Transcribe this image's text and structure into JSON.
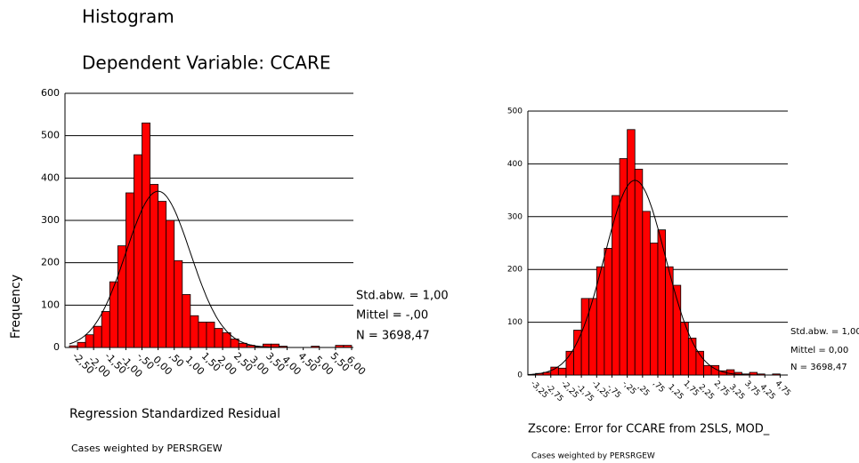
{
  "chart_data": [
    {
      "type": "histogram",
      "title": "Histogram",
      "subtitle": "Dependent Variable: CCARE",
      "ylabel": "Frequency",
      "xlabel": "Regression Standardized Residual",
      "note": "Cases weighted by PERSRGEW",
      "color": "#ff0000",
      "grid": true,
      "normal_curve": true,
      "bins": [
        -2.75,
        -2.5,
        -2.25,
        -2,
        -1.75,
        -1.5,
        -1.25,
        -1,
        -0.75,
        -0.5,
        -0.25,
        0,
        0.25,
        0.5,
        0.75,
        1,
        1.25,
        1.5,
        1.75,
        2,
        2.25,
        2.5,
        2.75,
        3,
        3.25,
        3.5,
        3.75,
        4,
        4.25,
        4.5,
        4.75,
        5,
        5.25,
        5.5,
        5.75,
        6
      ],
      "values": [
        4,
        12,
        30,
        50,
        85,
        155,
        240,
        365,
        455,
        530,
        385,
        345,
        300,
        205,
        125,
        75,
        60,
        60,
        45,
        35,
        20,
        10,
        5,
        2,
        8,
        8,
        3,
        0,
        0,
        0,
        3,
        0,
        0,
        5,
        5
      ],
      "xlim": [
        -2.75,
        6
      ],
      "ylim": [
        0,
        600
      ],
      "yticks": [
        0,
        100,
        200,
        300,
        400,
        500,
        600
      ],
      "xticks": [
        {
          "value": -2.5,
          "label": "-2,50"
        },
        {
          "value": -2,
          "label": "-2,00"
        },
        {
          "value": -1.5,
          "label": "-1,50"
        },
        {
          "value": -1,
          "label": "-1,00"
        },
        {
          "value": -0.5,
          "label": "-,50"
        },
        {
          "value": 0,
          "label": "0,00"
        },
        {
          "value": 0.5,
          "label": ",50"
        },
        {
          "value": 1,
          "label": "1,00"
        },
        {
          "value": 1.5,
          "label": "1,50"
        },
        {
          "value": 2,
          "label": "2,00"
        },
        {
          "value": 2.5,
          "label": "2,50"
        },
        {
          "value": 3,
          "label": "3,00"
        },
        {
          "value": 3.5,
          "label": "3,50"
        },
        {
          "value": 4,
          "label": "4,00"
        },
        {
          "value": 4.5,
          "label": "4,50"
        },
        {
          "value": 5,
          "label": "5,00"
        },
        {
          "value": 5.5,
          "label": "5,50"
        },
        {
          "value": 6,
          "label": "6,00"
        }
      ],
      "stats": {
        "sd": {
          "value": 1,
          "label": "Std.abw. = 1,00"
        },
        "mean": {
          "value": 0,
          "label": "Mittel = -,00"
        },
        "n": {
          "value": 3698.47,
          "label": "N = 3698,47"
        }
      }
    },
    {
      "type": "histogram",
      "xlabel": "Zscore:  Error for CCARE from 2SLS, MOD_",
      "note": "Cases weighted by PERSRGEW",
      "color": "#ff0000",
      "grid": true,
      "normal_curve": true,
      "bins": [
        -3.5,
        -3.25,
        -3,
        -2.75,
        -2.5,
        -2.25,
        -2,
        -1.75,
        -1.5,
        -1.25,
        -1,
        -0.75,
        -0.5,
        -0.25,
        0,
        0.25,
        0.5,
        0.75,
        1,
        1.25,
        1.5,
        1.75,
        2,
        2.25,
        2.5,
        2.75,
        3,
        3.25,
        3.5,
        3.75,
        4,
        4.25,
        4.5,
        4.75,
        5
      ],
      "values": [
        1,
        3,
        5,
        15,
        13,
        45,
        85,
        145,
        145,
        205,
        240,
        340,
        410,
        465,
        390,
        310,
        250,
        275,
        205,
        170,
        100,
        70,
        45,
        18,
        18,
        8,
        10,
        5,
        2,
        5,
        2,
        0,
        2,
        0
      ],
      "xlim": [
        -3.5,
        5
      ],
      "ylim": [
        0,
        500
      ],
      "yticks": [
        0,
        100,
        200,
        300,
        400,
        500
      ],
      "xticks": [
        {
          "value": -3.25,
          "label": "-3,25"
        },
        {
          "value": -2.75,
          "label": "-2,75"
        },
        {
          "value": -2.25,
          "label": "-2,25"
        },
        {
          "value": -1.75,
          "label": "-1,75"
        },
        {
          "value": -1.25,
          "label": "-1,25"
        },
        {
          "value": -0.75,
          "label": "-,75"
        },
        {
          "value": -0.25,
          "label": "-,25"
        },
        {
          "value": 0.25,
          "label": ",25"
        },
        {
          "value": 0.75,
          "label": ",75"
        },
        {
          "value": 1.25,
          "label": "1,25"
        },
        {
          "value": 1.75,
          "label": "1,75"
        },
        {
          "value": 2.25,
          "label": "2,25"
        },
        {
          "value": 2.75,
          "label": "2,75"
        },
        {
          "value": 3.25,
          "label": "3,25"
        },
        {
          "value": 3.75,
          "label": "3,75"
        },
        {
          "value": 4.25,
          "label": "4,25"
        },
        {
          "value": 4.75,
          "label": "4,75"
        }
      ],
      "stats": {
        "sd": {
          "value": 1,
          "label": "Std.abw. = 1,00"
        },
        "mean": {
          "value": 0,
          "label": "Mittel = 0,00"
        },
        "n": {
          "value": 3698.47,
          "label": "N = 3698,47"
        }
      }
    }
  ]
}
